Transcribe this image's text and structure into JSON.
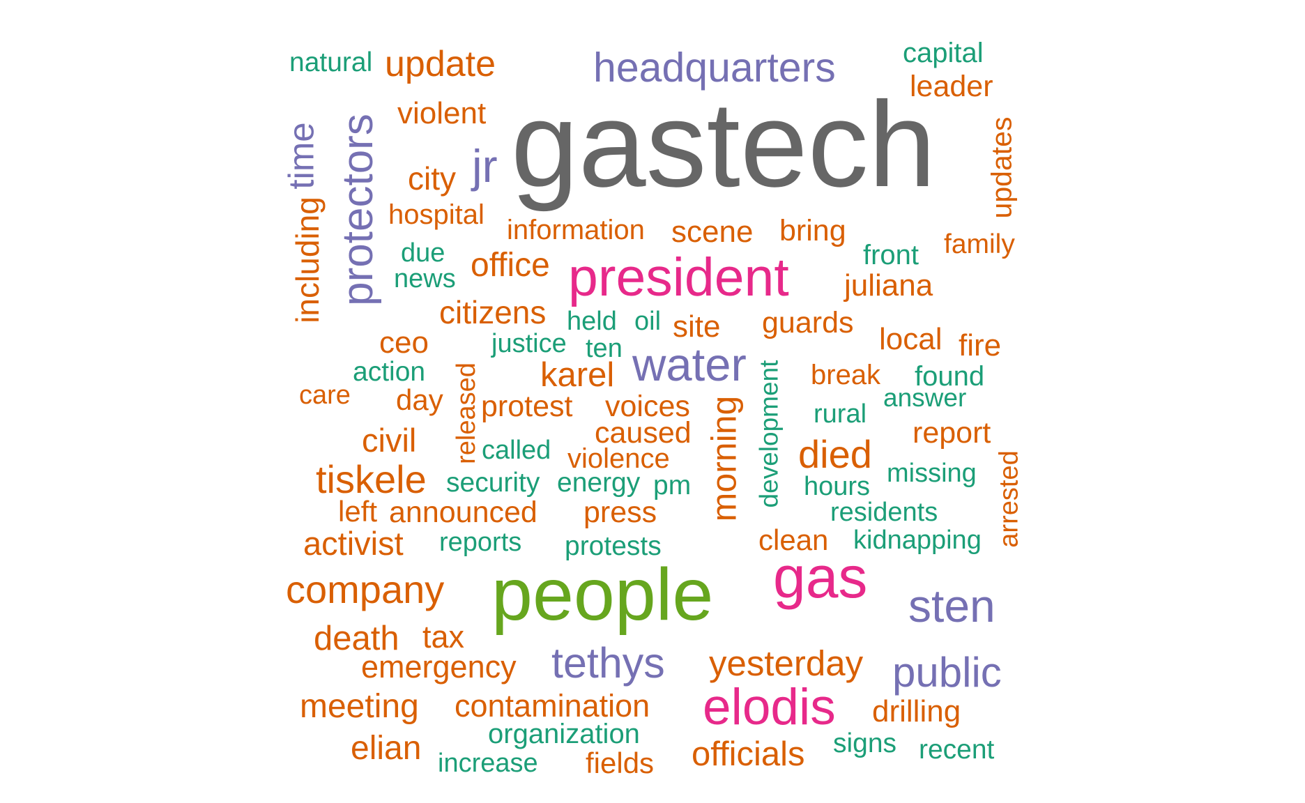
{
  "colors": {
    "orange": "#D95F02",
    "teal": "#1B9E77",
    "purple": "#7570B3",
    "magenta": "#E7298A",
    "green": "#66A61E",
    "gray": "#666666"
  },
  "words": [
    {
      "text": "gastech",
      "color": "gray"
    },
    {
      "text": "people",
      "color": "green"
    },
    {
      "text": "president",
      "color": "magenta"
    },
    {
      "text": "gas",
      "color": "magenta"
    },
    {
      "text": "elodis",
      "color": "magenta"
    },
    {
      "text": "water",
      "color": "purple"
    },
    {
      "text": "headquarters",
      "color": "purple"
    },
    {
      "text": "sten",
      "color": "purple"
    },
    {
      "text": "tethys",
      "color": "purple"
    },
    {
      "text": "public",
      "color": "purple"
    },
    {
      "text": "jr",
      "color": "purple"
    },
    {
      "text": "protectors",
      "color": "purple"
    },
    {
      "text": "time",
      "color": "purple"
    },
    {
      "text": "natural",
      "color": "teal"
    },
    {
      "text": "update",
      "color": "orange"
    },
    {
      "text": "capital",
      "color": "teal"
    },
    {
      "text": "leader",
      "color": "orange"
    },
    {
      "text": "violent",
      "color": "orange"
    },
    {
      "text": "updates",
      "color": "orange"
    },
    {
      "text": "city",
      "color": "orange"
    },
    {
      "text": "including",
      "color": "orange"
    },
    {
      "text": "hospital",
      "color": "orange"
    },
    {
      "text": "information",
      "color": "orange"
    },
    {
      "text": "scene",
      "color": "orange"
    },
    {
      "text": "bring",
      "color": "orange"
    },
    {
      "text": "family",
      "color": "orange"
    },
    {
      "text": "front",
      "color": "teal"
    },
    {
      "text": "due",
      "color": "teal"
    },
    {
      "text": "news",
      "color": "teal"
    },
    {
      "text": "office",
      "color": "orange"
    },
    {
      "text": "juliana",
      "color": "orange"
    },
    {
      "text": "citizens",
      "color": "orange"
    },
    {
      "text": "held",
      "color": "teal"
    },
    {
      "text": "oil",
      "color": "teal"
    },
    {
      "text": "site",
      "color": "orange"
    },
    {
      "text": "guards",
      "color": "orange"
    },
    {
      "text": "local",
      "color": "orange"
    },
    {
      "text": "fire",
      "color": "orange"
    },
    {
      "text": "ceo",
      "color": "orange"
    },
    {
      "text": "justice",
      "color": "teal"
    },
    {
      "text": "ten",
      "color": "teal"
    },
    {
      "text": "released",
      "color": "orange"
    },
    {
      "text": "development",
      "color": "teal"
    },
    {
      "text": "action",
      "color": "teal"
    },
    {
      "text": "karel",
      "color": "orange"
    },
    {
      "text": "break",
      "color": "orange"
    },
    {
      "text": "found",
      "color": "teal"
    },
    {
      "text": "care",
      "color": "orange"
    },
    {
      "text": "day",
      "color": "orange"
    },
    {
      "text": "answer",
      "color": "teal"
    },
    {
      "text": "protest",
      "color": "orange"
    },
    {
      "text": "voices",
      "color": "orange"
    },
    {
      "text": "morning",
      "color": "orange"
    },
    {
      "text": "rural",
      "color": "teal"
    },
    {
      "text": "civil",
      "color": "orange"
    },
    {
      "text": "caused",
      "color": "orange"
    },
    {
      "text": "report",
      "color": "orange"
    },
    {
      "text": "called",
      "color": "teal"
    },
    {
      "text": "died",
      "color": "orange"
    },
    {
      "text": "violence",
      "color": "orange"
    },
    {
      "text": "tiskele",
      "color": "orange"
    },
    {
      "text": "missing",
      "color": "teal"
    },
    {
      "text": "security",
      "color": "teal"
    },
    {
      "text": "energy",
      "color": "teal"
    },
    {
      "text": "pm",
      "color": "teal"
    },
    {
      "text": "hours",
      "color": "teal"
    },
    {
      "text": "arrested",
      "color": "orange"
    },
    {
      "text": "left",
      "color": "orange"
    },
    {
      "text": "announced",
      "color": "orange"
    },
    {
      "text": "press",
      "color": "orange"
    },
    {
      "text": "residents",
      "color": "teal"
    },
    {
      "text": "activist",
      "color": "orange"
    },
    {
      "text": "reports",
      "color": "teal"
    },
    {
      "text": "protests",
      "color": "teal"
    },
    {
      "text": "clean",
      "color": "orange"
    },
    {
      "text": "kidnapping",
      "color": "teal"
    },
    {
      "text": "company",
      "color": "orange"
    },
    {
      "text": "death",
      "color": "orange"
    },
    {
      "text": "tax",
      "color": "orange"
    },
    {
      "text": "emergency",
      "color": "orange"
    },
    {
      "text": "yesterday",
      "color": "orange"
    },
    {
      "text": "meeting",
      "color": "orange"
    },
    {
      "text": "contamination",
      "color": "orange"
    },
    {
      "text": "drilling",
      "color": "orange"
    },
    {
      "text": "organization",
      "color": "teal"
    },
    {
      "text": "elian",
      "color": "orange"
    },
    {
      "text": "signs",
      "color": "teal"
    },
    {
      "text": "recent",
      "color": "teal"
    },
    {
      "text": "increase",
      "color": "teal"
    },
    {
      "text": "fields",
      "color": "orange"
    },
    {
      "text": "officials",
      "color": "orange"
    }
  ]
}
